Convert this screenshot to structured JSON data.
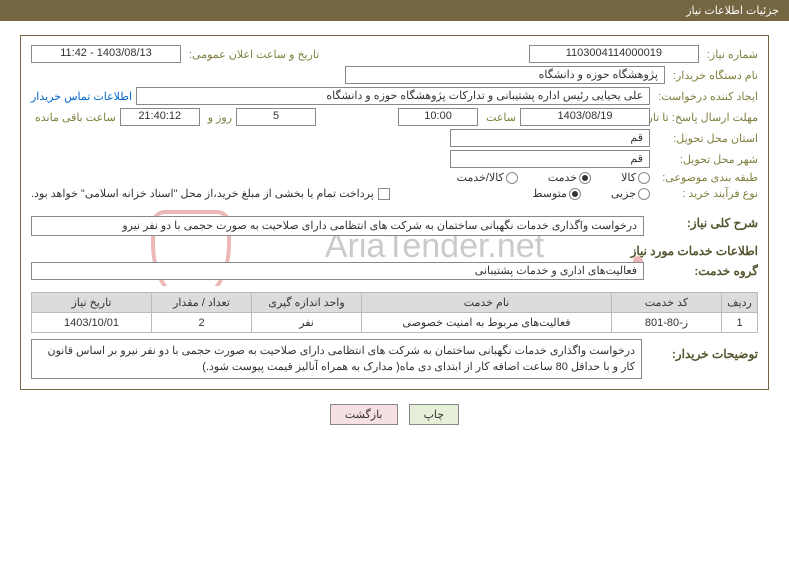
{
  "header": {
    "title": "جزئیات اطلاعات نیاز"
  },
  "labels": {
    "need_no": "شماره نیاز:",
    "announce_dt": "تاریخ و ساعت اعلان عمومی:",
    "buyer_org": "نام دستگاه خریدار:",
    "requester": "ایجاد کننده درخواست:",
    "contact_link": "اطلاعات تماس خریدار",
    "deadline": "مهلت ارسال پاسخ: تا تاریخ:",
    "time_word": "ساعت",
    "days_and": "روز و",
    "time_left": "ساعت باقی مانده",
    "delivery_province": "استان محل تحویل:",
    "delivery_city": "شهر محل تحویل:",
    "subject_class": "طبقه بندی موضوعی:",
    "process_type": "نوع فرآیند خرید :",
    "payment_note": "پرداخت تمام یا بخشی از مبلغ خرید،از محل \"اسناد خزانه اسلامی\" خواهد بود.",
    "need_summary": "شرح کلی نیاز:",
    "services_info": "اطلاعات خدمات مورد نیاز",
    "service_group": "گروه خدمت:",
    "buyer_desc": "توضیحات خریدار:"
  },
  "fields": {
    "need_no": "1103004114000019",
    "announce_dt": "1403/08/13 - 11:42",
    "buyer_org": "پژوهشگاه حوزه و دانشگاه",
    "requester": "علی یحیایی رئیس اداره پشتیبانی و تدارکات پژوهشگاه حوزه و دانشگاه",
    "deadline_date": "1403/08/19",
    "deadline_time": "10:00",
    "days_left": "5",
    "time_left": "21:40:12",
    "province": "قم",
    "city": "قم",
    "need_summary": "درخواست واگذاری خدمات نگهبانی ساختمان به شرکت های انتظامی دارای صلاحیت به صورت حجمی با دو نفر نیرو",
    "service_group": "فعالیت‌های اداری و خدمات پشتیبانی",
    "buyer_desc": "درخواست واگذاری خدمات نگهبانی ساختمان به شرکت های انتظامی دارای صلاحیت به صورت حجمی با دو نفر نیرو بر اساس قانون کار و با حداقل 80 ساعت اضافه کار از ابتدای دی ماه( مدارک به همراه آنالیز قیمت پیوست شود.)"
  },
  "subject_class": {
    "options": [
      "کالا",
      "خدمت",
      "کالا/خدمت"
    ],
    "selected": "خدمت"
  },
  "process_type": {
    "options": [
      "جزیی",
      "متوسط"
    ],
    "selected": "متوسط"
  },
  "payment_checked": false,
  "table": {
    "headers": [
      "ردیف",
      "کد خدمت",
      "نام خدمت",
      "واحد اندازه گیری",
      "تعداد / مقدار",
      "تاریخ نیاز"
    ],
    "col_widths": [
      "36px",
      "110px",
      "auto",
      "110px",
      "100px",
      "120px"
    ],
    "rows": [
      [
        "1",
        "ز-80-801",
        "فعالیت‌های مربوط به امنیت خصوصی",
        "نفر",
        "2",
        "1403/10/01"
      ]
    ]
  },
  "buttons": {
    "print": "چاپ",
    "back": "بازگشت"
  },
  "watermark": "AriaTender.net",
  "colors": {
    "header_bg": "#746641",
    "label": "#808040",
    "link": "#0066cc",
    "th_bg": "#dcdcdc",
    "border": "#bbbbbb",
    "btn_green": "#e6f0d8",
    "btn_pink": "#f5e0e4"
  }
}
